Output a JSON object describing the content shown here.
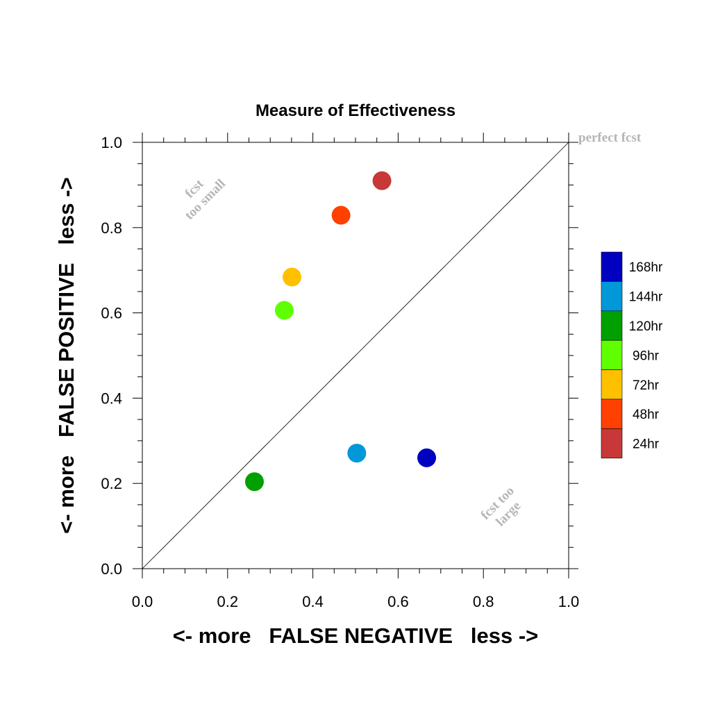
{
  "chart_data": {
    "type": "scatter",
    "title": "Measure of Effectiveness",
    "xlabel": "<- more   FALSE NEGATIVE   less ->",
    "ylabel": "<- more   FALSE POSITIVE   less ->",
    "xlim": [
      0.0,
      1.0
    ],
    "ylim": [
      0.0,
      1.0
    ],
    "xticks": [
      "0.0",
      "0.2",
      "0.4",
      "0.6",
      "0.8",
      "1.0"
    ],
    "yticks": [
      "0.0",
      "0.2",
      "0.4",
      "0.6",
      "0.8",
      "1.0"
    ],
    "grid": false,
    "legend_position": "right",
    "reference_line": "diagonal y = x",
    "annotations": {
      "perfect": "perfect fcst",
      "small_line1": "fcst",
      "small_line2": "too small",
      "large_line1": "fcst too",
      "large_line2": "large"
    },
    "series": [
      {
        "name": "168hr",
        "color": "#0000c0",
        "x": 0.667,
        "y": 0.26
      },
      {
        "name": "144hr",
        "color": "#0098d8",
        "x": 0.503,
        "y": 0.271
      },
      {
        "name": "120hr",
        "color": "#00a000",
        "x": 0.263,
        "y": 0.204
      },
      {
        "name": "96hr",
        "color": "#60ff00",
        "x": 0.333,
        "y": 0.606
      },
      {
        "name": "72hr",
        "color": "#ffc000",
        "x": 0.351,
        "y": 0.684
      },
      {
        "name": "48hr",
        "color": "#ff4000",
        "x": 0.466,
        "y": 0.829
      },
      {
        "name": "24hr",
        "color": "#c83838",
        "x": 0.562,
        "y": 0.91
      }
    ]
  }
}
